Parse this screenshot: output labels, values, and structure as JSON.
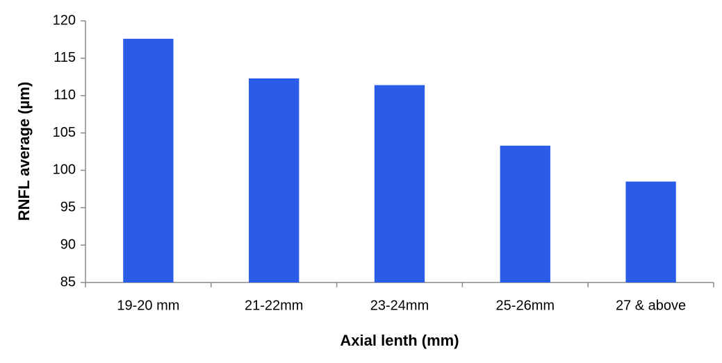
{
  "chart_data": {
    "type": "bar",
    "categories": [
      "19-20 mm",
      "21-22mm",
      "23-24mm",
      "25-26mm",
      "27 & above"
    ],
    "values": [
      117.6,
      112.3,
      111.4,
      103.3,
      98.5
    ],
    "color": "#2a5ce8",
    "ylim": [
      85,
      120
    ],
    "yticks": [
      85,
      90,
      95,
      100,
      105,
      110,
      115,
      120
    ],
    "grid": false,
    "x_label": "Axial lenth (mm)",
    "y_label": "RNFL average (µm)"
  }
}
